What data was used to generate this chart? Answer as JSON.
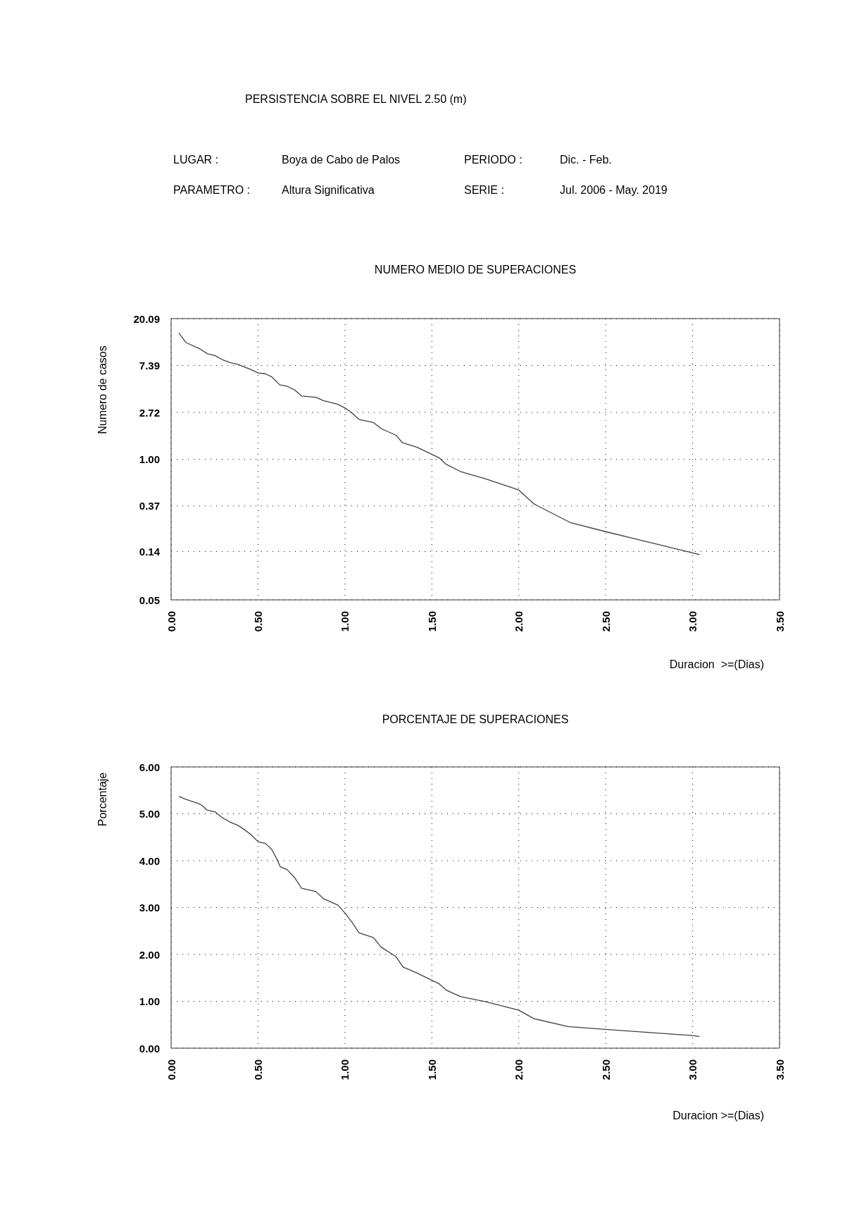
{
  "chart_data": [
    {
      "type": "line",
      "title": "NUMERO MEDIO DE SUPERACIONES",
      "xlabel": "Duracion  >=(Dias)",
      "ylabel": "Numero de casos",
      "annotations": [
        "PERSISTENCIA SOBRE EL NIVEL 2.50 (m)",
        "LUGAR :",
        "Boya de Cabo de Palos",
        "PERIODO :",
        "Dic. - Feb.",
        "PARAMETRO :",
        "Altura Significativa",
        "SERIE :",
        "Jul. 2006 - May. 2019"
      ],
      "x": [
        0.045,
        0.084,
        0.167,
        0.209,
        0.252,
        0.293,
        0.336,
        0.386,
        0.458,
        0.501,
        0.542,
        0.579,
        0.624,
        0.667,
        0.71,
        0.751,
        0.833,
        0.876,
        0.96,
        1.006,
        1.042,
        1.081,
        1.164,
        1.21,
        1.294,
        1.33,
        1.416,
        1.5,
        1.543,
        1.582,
        1.666,
        1.81,
        2.0,
        2.089,
        2.296,
        2.5,
        3.0,
        3.04
      ],
      "series": [
        {
          "color": "#404040",
          "values": [
            14.8,
            12.1,
            10.5,
            9.5,
            9.15,
            8.4,
            7.9,
            7.55,
            6.8,
            6.3,
            6.2,
            5.8,
            4.9,
            4.75,
            4.4,
            3.85,
            3.75,
            3.5,
            3.23,
            2.95,
            2.67,
            2.34,
            2.19,
            1.92,
            1.67,
            1.43,
            1.29,
            1.11,
            1.03,
            0.9,
            0.77,
            0.66,
            0.52,
            0.385,
            0.26,
            0.214,
            0.136,
            0.131
          ]
        }
      ],
      "xlim": [
        0,
        3.5
      ],
      "xticks": [
        {
          "value": 0,
          "label": "0.00"
        },
        {
          "value": 0.5,
          "label": "0.50"
        },
        {
          "value": 1,
          "label": "1.00"
        },
        {
          "value": 1.5,
          "label": "1.50"
        },
        {
          "value": 2,
          "label": "2.00"
        },
        {
          "value": 2.5,
          "label": "2.50"
        },
        {
          "value": 3,
          "label": "3.00"
        },
        {
          "value": 3.5,
          "label": "3.50"
        }
      ],
      "ylim": [
        0.05,
        20.09
      ],
      "yticks": [
        0.05,
        0.14,
        0.37,
        {
          "value": 1,
          "label": "1.00"
        },
        2.72,
        7.39,
        20.09
      ],
      "log": true,
      "grid": true,
      "marker": "none",
      "line_style": "solid"
    },
    {
      "type": "line",
      "title": "PORCENTAJE DE SUPERACIONES",
      "xlabel": "Duracion >=(Dias)",
      "ylabel": "Porcentaje",
      "x": [
        0.045,
        0.084,
        0.156,
        0.177,
        0.206,
        0.252,
        0.293,
        0.336,
        0.386,
        0.422,
        0.458,
        0.501,
        0.542,
        0.579,
        0.61,
        0.628,
        0.667,
        0.71,
        0.751,
        0.833,
        0.876,
        0.96,
        1.003,
        1.042,
        1.081,
        1.164,
        1.207,
        1.294,
        1.334,
        1.416,
        1.5,
        1.543,
        1.582,
        1.666,
        1.81,
        2.0,
        2.087,
        2.283,
        2.5,
        3.0,
        3.04
      ],
      "series": [
        {
          "color": "#404040",
          "values": [
            5.37,
            5.31,
            5.22,
            5.18,
            5.08,
            5.04,
            4.92,
            4.83,
            4.75,
            4.66,
            4.56,
            4.4,
            4.37,
            4.24,
            4.02,
            3.87,
            3.81,
            3.64,
            3.41,
            3.34,
            3.19,
            3.05,
            2.87,
            2.68,
            2.46,
            2.36,
            2.16,
            1.95,
            1.73,
            1.6,
            1.45,
            1.37,
            1.24,
            1.1,
            0.99,
            0.81,
            0.63,
            0.46,
            0.4,
            0.27,
            0.25
          ]
        }
      ],
      "xlim": [
        0,
        3.5
      ],
      "xticks": [
        {
          "value": 0,
          "label": "0.00"
        },
        {
          "value": 0.5,
          "label": "0.50"
        },
        {
          "value": 1,
          "label": "1.00"
        },
        {
          "value": 1.5,
          "label": "1.50"
        },
        {
          "value": 2,
          "label": "2.00"
        },
        {
          "value": 2.5,
          "label": "2.50"
        },
        {
          "value": 3,
          "label": "3.00"
        },
        {
          "value": 3.5,
          "label": "3.50"
        }
      ],
      "ylim": [
        0,
        6
      ],
      "yticks": [
        {
          "value": 0,
          "label": "0.00"
        },
        {
          "value": 1,
          "label": "1.00"
        },
        {
          "value": 2,
          "label": "2.00"
        },
        {
          "value": 3,
          "label": "3.00"
        },
        {
          "value": 4,
          "label": "4.00"
        },
        {
          "value": 5,
          "label": "5.00"
        },
        {
          "value": 6,
          "label": "6.00"
        }
      ],
      "grid": true,
      "marker": "none",
      "line_style": "solid"
    }
  ]
}
